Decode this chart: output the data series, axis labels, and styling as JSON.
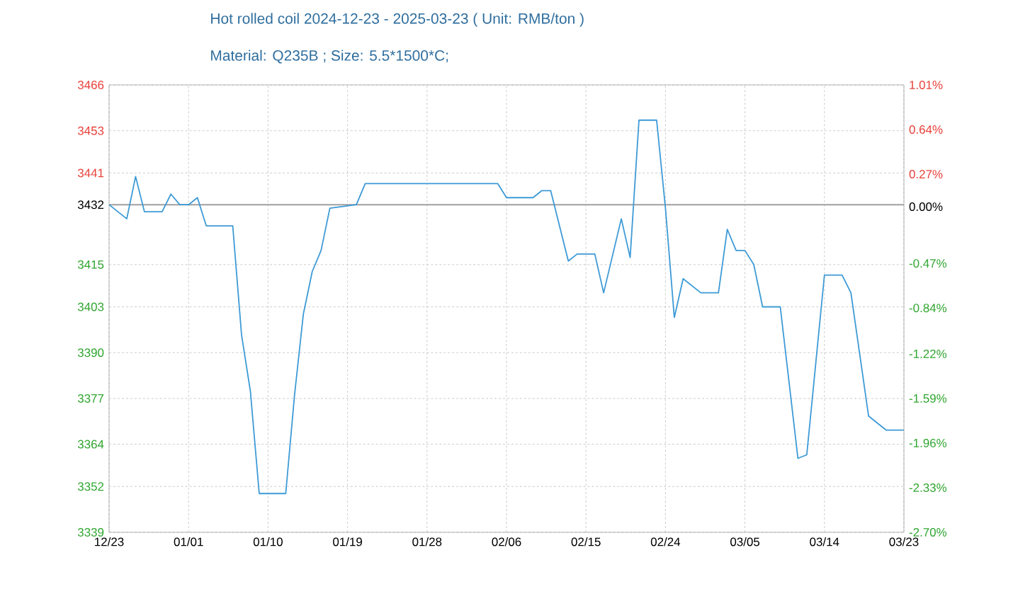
{
  "chart_data": {
    "type": "line",
    "title": "Hot rolled coil 2024-12-23 - 2025-03-23 ( Unit: RMB/ton )",
    "subtitle": "Material: Q235B ; Size: 5.5*1500*C;",
    "series": [
      {
        "color": "#3d9ad6",
        "x": [
          "2024-12-23",
          "2024-12-25",
          "2024-12-26",
          "2024-12-27",
          "2024-12-29",
          "2024-12-30",
          "2024-12-31",
          "2025-01-01",
          "2025-01-02",
          "2025-01-03",
          "2025-01-06",
          "2025-01-07",
          "2025-01-08",
          "2025-01-09",
          "2025-01-12",
          "2025-01-13",
          "2025-01-14",
          "2025-01-15",
          "2025-01-16",
          "2025-01-17",
          "2025-01-20",
          "2025-01-21",
          "2025-02-05",
          "2025-02-06",
          "2025-02-09",
          "2025-02-10",
          "2025-02-11",
          "2025-02-13",
          "2025-02-14",
          "2025-02-16",
          "2025-02-17",
          "2025-02-19",
          "2025-02-20",
          "2025-02-21",
          "2025-02-23",
          "2025-02-24",
          "2025-02-25",
          "2025-02-26",
          "2025-02-28",
          "2025-03-02",
          "2025-03-03",
          "2025-03-04",
          "2025-03-05",
          "2025-03-06",
          "2025-03-07",
          "2025-03-09",
          "2025-03-11",
          "2025-03-12",
          "2025-03-14",
          "2025-03-16",
          "2025-03-17",
          "2025-03-19",
          "2025-03-21",
          "2025-03-23"
        ],
        "values": [
          3432,
          3428,
          3440,
          3430,
          3430,
          3435,
          3432,
          3432,
          3434,
          3426,
          3426,
          3395,
          3379,
          3350,
          3350,
          3378,
          3401,
          3413,
          3419,
          3431,
          3432,
          3438,
          3438,
          3434,
          3434,
          3436,
          3436,
          3416,
          3418,
          3418,
          3407,
          3428,
          3417,
          3456,
          3456,
          3431,
          3400,
          3411,
          3407,
          3407,
          3425,
          3419,
          3419,
          3415,
          3403,
          3403,
          3360,
          3361,
          3412,
          3412,
          3407,
          3372,
          3368,
          3368
        ]
      }
    ],
    "xlim": [
      "2024-12-23",
      "2025-03-23"
    ],
    "xticks": [
      {
        "value": "2024-12-23",
        "label": "12/23"
      },
      {
        "value": "2025-01-01",
        "label": "01/01"
      },
      {
        "value": "2025-01-10",
        "label": "01/10"
      },
      {
        "value": "2025-01-19",
        "label": "01/19"
      },
      {
        "value": "2025-01-28",
        "label": "01/28"
      },
      {
        "value": "2025-02-06",
        "label": "02/06"
      },
      {
        "value": "2025-02-15",
        "label": "02/15"
      },
      {
        "value": "2025-02-24",
        "label": "02/24"
      },
      {
        "value": "2025-03-05",
        "label": "03/05"
      },
      {
        "value": "2025-03-14",
        "label": "03/14"
      },
      {
        "value": "2025-03-23",
        "label": "03/23"
      }
    ],
    "ylim": [
      3339,
      3466
    ],
    "yticks": [
      3339,
      3352,
      3364,
      3377,
      3390,
      3403,
      3415,
      3432,
      3441,
      3453,
      3466
    ],
    "y2lim": [
      -2.7,
      1.01
    ],
    "y2ticks": [
      {
        "value": -2.7,
        "label": "-2.70%"
      },
      {
        "value": -2.33,
        "label": "-2.33%"
      },
      {
        "value": -1.96,
        "label": "-1.96%"
      },
      {
        "value": -1.59,
        "label": "-1.59%"
      },
      {
        "value": -1.22,
        "label": "-1.22%"
      },
      {
        "value": -0.84,
        "label": "-0.84%"
      },
      {
        "value": -0.47,
        "label": "-0.47%"
      },
      {
        "value": 0.0,
        "label": "0.00%"
      },
      {
        "value": 0.27,
        "label": "0.27%"
      },
      {
        "value": 0.64,
        "label": "0.64%"
      },
      {
        "value": 1.01,
        "label": "1.01%"
      }
    ],
    "ref_lines": [
      {
        "axis": "y",
        "value": 3432,
        "color": "#a0a0a0"
      }
    ],
    "grid": true,
    "marker": "none",
    "line_style": "solid"
  }
}
